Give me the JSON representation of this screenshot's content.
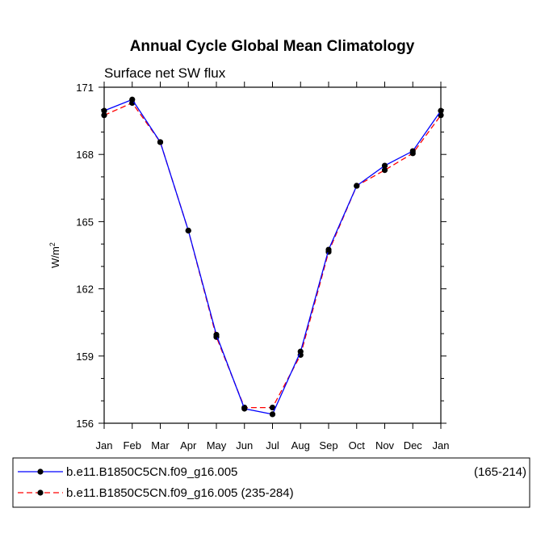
{
  "chart_data": {
    "type": "line",
    "title": "Annual Cycle Global Mean Climatology",
    "subtitle": "Surface net SW flux",
    "xlabel": "",
    "ylabel": "W/m",
    "ylabel_sup": "2",
    "categories": [
      "Jan",
      "Feb",
      "Mar",
      "Apr",
      "May",
      "Jun",
      "Jul",
      "Aug",
      "Sep",
      "Oct",
      "Nov",
      "Dec",
      "Jan"
    ],
    "ylim": [
      156,
      171
    ],
    "yticks": [
      156,
      159,
      162,
      165,
      168,
      171
    ],
    "series": [
      {
        "name": "b.e11.B1850C5CN.f09_g16.005",
        "legend_suffix": "(165-214)",
        "color": "#0000ff",
        "dash": "solid",
        "values": [
          169.95,
          170.45,
          168.55,
          164.6,
          159.95,
          156.65,
          156.4,
          159.2,
          163.75,
          166.6,
          167.5,
          168.15,
          169.95
        ]
      },
      {
        "name": "b.e11.B1850C5CN.f09_g16.005 (235-284)",
        "legend_suffix": "",
        "color": "#ff0000",
        "dash": "dashed",
        "values": [
          169.75,
          170.3,
          168.55,
          164.6,
          159.85,
          156.7,
          156.7,
          159.05,
          163.65,
          166.6,
          167.3,
          168.05,
          169.75
        ]
      }
    ]
  }
}
